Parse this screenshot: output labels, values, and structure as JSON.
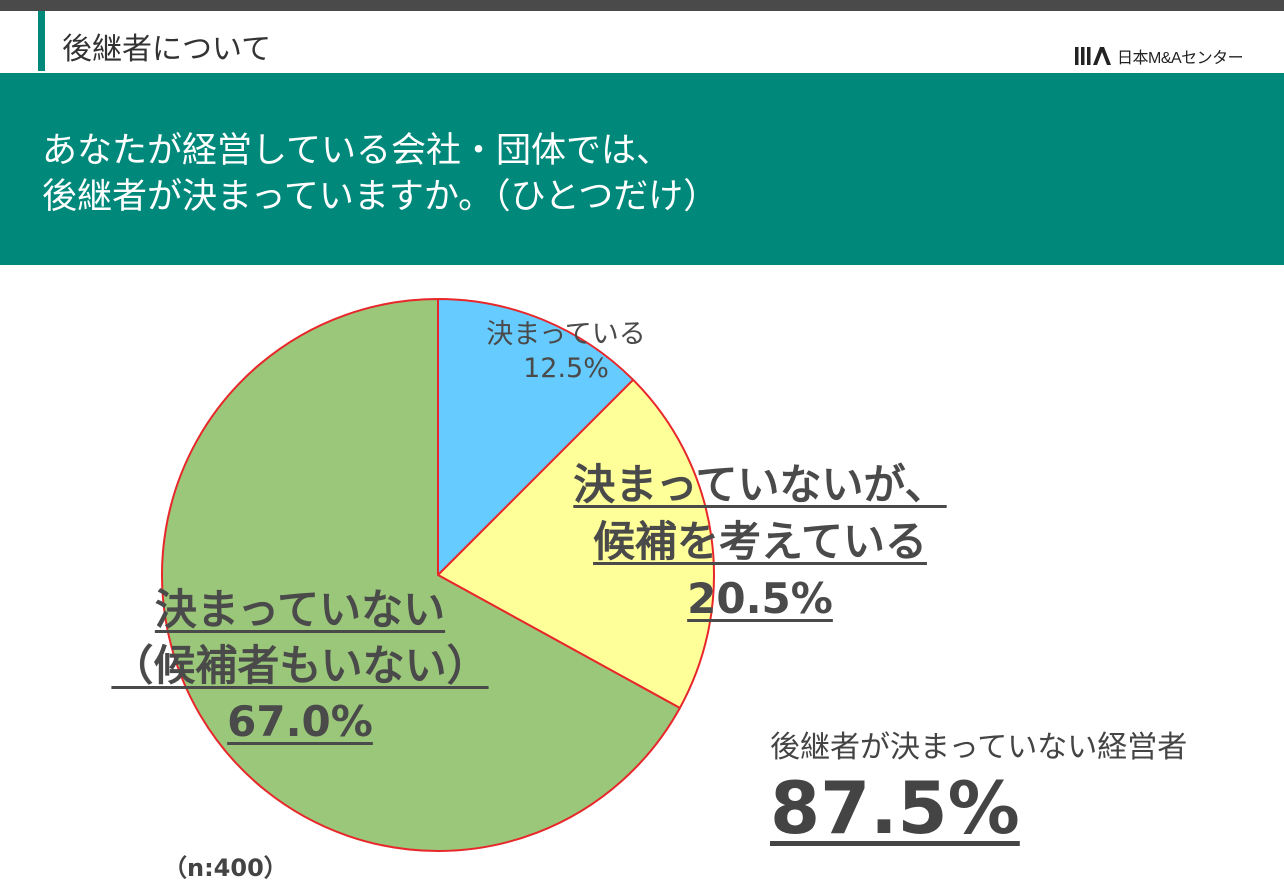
{
  "header": {
    "section_title": "後継者について",
    "logo_text": "日本M&Aセンター"
  },
  "question": {
    "line1": "あなたが経営している会社・団体では、",
    "line2": "後継者が決まっていますか。（ひとつだけ）"
  },
  "chart_data": {
    "type": "pie",
    "start_angle_deg": 0,
    "direction": "clockwise",
    "slice_border_color": "#e8272a",
    "slices": [
      {
        "label": [
          "決まっている"
        ],
        "value_text": "12.5%",
        "value": 12.5,
        "color": "#66ccff"
      },
      {
        "label": [
          "決まっていないが、",
          "候補を考えている"
        ],
        "value_text": "20.5%",
        "value": 20.5,
        "color": "#ffff99"
      },
      {
        "label": [
          "決まっていない",
          "（候補者もいない）"
        ],
        "value_text": "67.0%",
        "value": 67.0,
        "color": "#9bc77a"
      }
    ]
  },
  "summary": {
    "label": "後継者が決まっていない経営者",
    "value": "87.5%"
  },
  "sample_note": "（n:400）",
  "colors": {
    "banner": "#00897b",
    "topbar": "#4a4a4a",
    "text": "#444444"
  }
}
